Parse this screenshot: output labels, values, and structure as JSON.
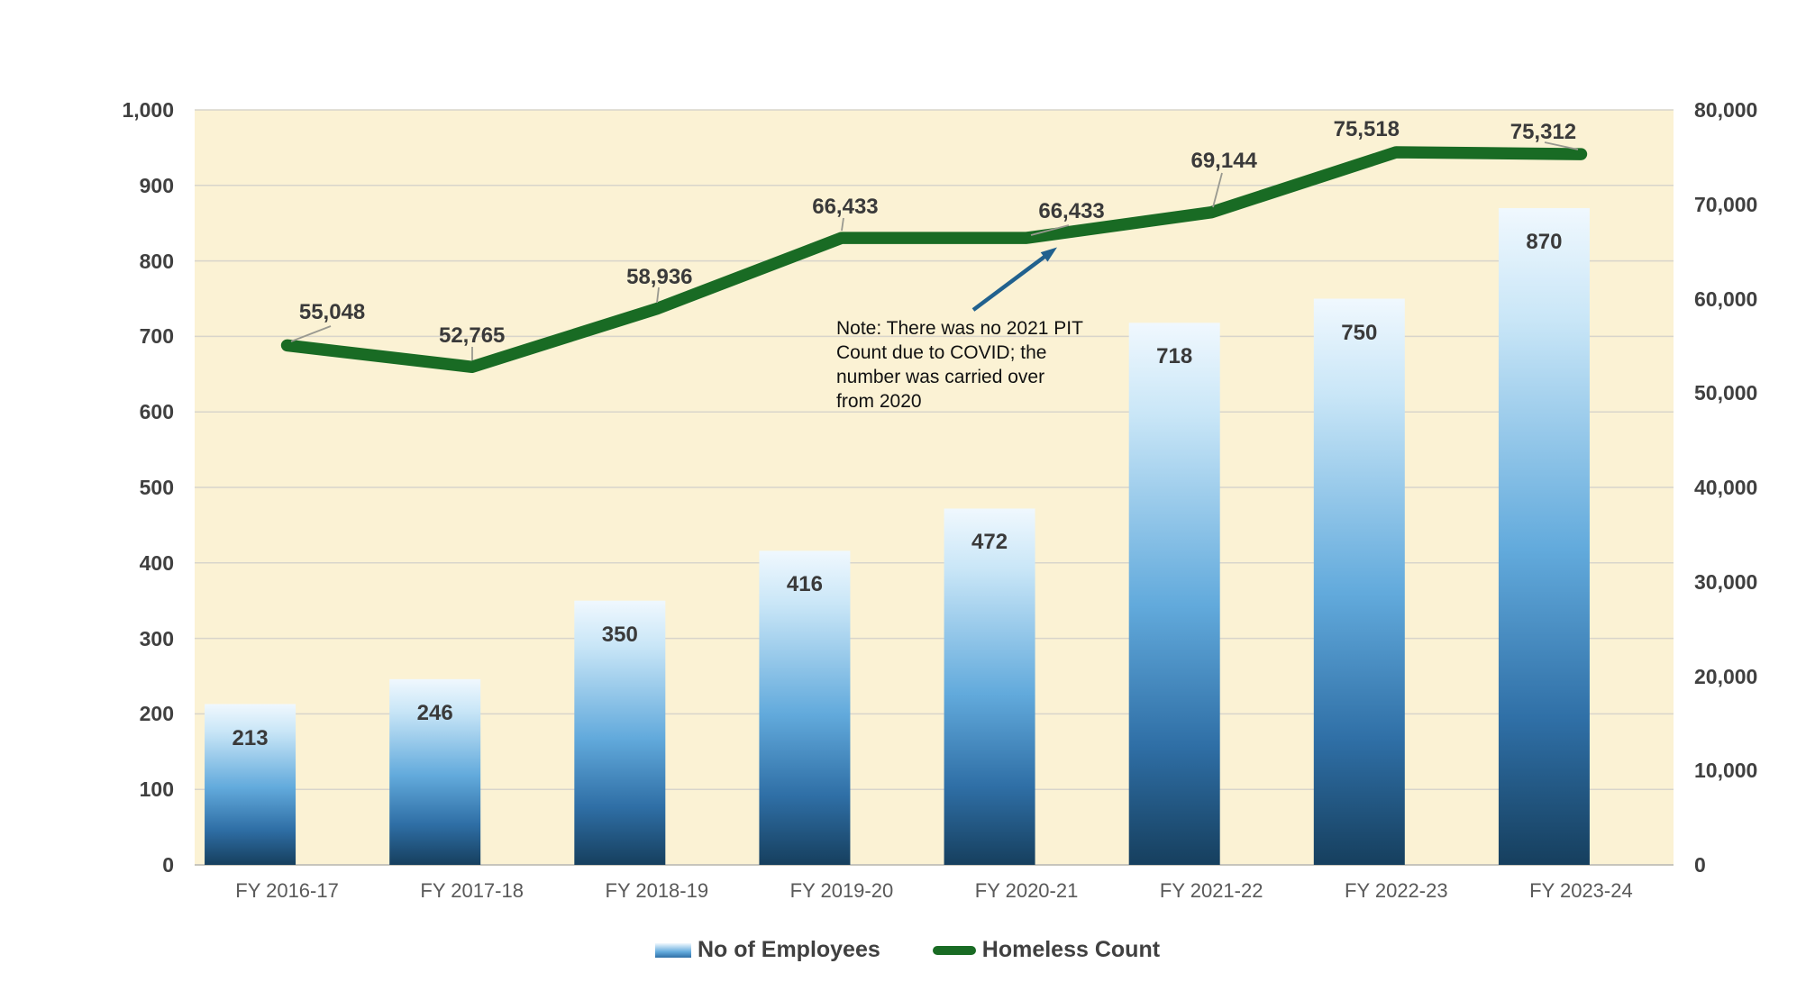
{
  "chart_data": {
    "type": "combo_bar_line",
    "categories": [
      "FY 2016-17",
      "FY 2017-18",
      "FY 2018-19",
      "FY 2019-20",
      "FY 2020-21",
      "FY 2021-22",
      "FY 2022-23",
      "FY 2023-24"
    ],
    "series": [
      {
        "name": "No of Employees",
        "type": "bar",
        "axis": "left",
        "values": [
          213,
          246,
          350,
          416,
          472,
          718,
          750,
          870
        ],
        "labels": [
          "213",
          "246",
          "350",
          "416",
          "472",
          "718",
          "750",
          "870"
        ]
      },
      {
        "name": "Homeless Count",
        "type": "line",
        "axis": "right",
        "values": [
          55048,
          52765,
          58936,
          66433,
          66433,
          69144,
          75518,
          75312
        ],
        "labels": [
          "55,048",
          "52,765",
          "58,936",
          "66,433",
          "66,433",
          "69,144",
          "75,518",
          "75,312"
        ]
      }
    ],
    "left_axis": {
      "min": 0,
      "max": 1000,
      "step": 100,
      "ticks": [
        "0",
        "100",
        "200",
        "300",
        "400",
        "500",
        "600",
        "700",
        "800",
        "900",
        "1,000"
      ]
    },
    "right_axis": {
      "min": 0,
      "max": 80000,
      "step": 10000,
      "ticks": [
        "0",
        "10,000",
        "20,000",
        "30,000",
        "40,000",
        "50,000",
        "60,000",
        "70,000",
        "80,000"
      ]
    },
    "grid": true,
    "legend_position": "bottom",
    "annotation": {
      "lines": [
        "Note: There was no 2021 PIT",
        "Count due to COVID; the",
        "number was carried over",
        "from 2020"
      ]
    }
  },
  "colors": {
    "plot_bg": "#FBF2D4",
    "grid": "#D8D5CB",
    "baseline": "#C7C5BC",
    "line_green": "#196B24",
    "bar_grad_top": "#F0F8FE",
    "bar_grad_light": "#C9E6F7",
    "bar_grad_mid": "#62AADC",
    "bar_grad_deep": "#2F6FA6",
    "bar_grad_bottom": "#163F5E",
    "arrow_blue": "#21618E",
    "leader_gray": "#999990",
    "axis_text": "#404040",
    "category_text": "#595959",
    "label_text": "#3A3A3A"
  }
}
